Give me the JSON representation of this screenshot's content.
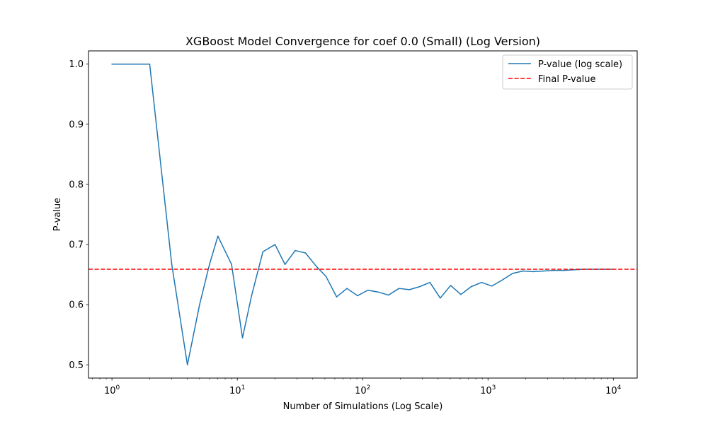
{
  "chart_data": {
    "type": "line",
    "title": "XGBoost Model Convergence for coef 0.0 (Small) (Log Version)",
    "xlabel": "Number of Simulations (Log Scale)",
    "ylabel": "P-value",
    "xscale": "log",
    "xlim": [
      0.65,
      15500
    ],
    "ylim": [
      0.478,
      1.022
    ],
    "xticks": [
      {
        "value": 1,
        "base": "10",
        "exp": "0"
      },
      {
        "value": 10,
        "base": "10",
        "exp": "1"
      },
      {
        "value": 100,
        "base": "10",
        "exp": "2"
      },
      {
        "value": 1000,
        "base": "10",
        "exp": "3"
      },
      {
        "value": 10000,
        "base": "10",
        "exp": "4"
      }
    ],
    "yticks": [
      {
        "value": 0.5,
        "label": "0.5"
      },
      {
        "value": 0.6,
        "label": "0.6"
      },
      {
        "value": 0.7,
        "label": "0.7"
      },
      {
        "value": 0.8,
        "label": "0.8"
      },
      {
        "value": 0.9,
        "label": "0.9"
      },
      {
        "value": 1.0,
        "label": "1.0"
      }
    ],
    "grid": false,
    "legend_position": "top-right",
    "series": [
      {
        "name": "P-value (log scale)",
        "style": "solid",
        "color": "#1f77b4",
        "x": [
          1,
          2,
          3,
          4,
          5,
          6,
          7,
          9,
          11,
          13,
          16,
          20,
          24,
          29,
          35,
          43,
          51,
          62,
          75,
          91,
          110,
          133,
          161,
          195,
          236,
          285,
          344,
          416,
          503,
          608,
          735,
          889,
          1075,
          1300,
          1572,
          1900,
          2297,
          2778,
          3358,
          4060,
          4910,
          5935,
          7177,
          8677,
          10000
        ],
        "y": [
          1.0,
          1.0,
          0.667,
          0.5,
          0.6,
          0.667,
          0.714,
          0.667,
          0.545,
          0.615,
          0.688,
          0.7,
          0.667,
          0.69,
          0.686,
          0.663,
          0.647,
          0.613,
          0.627,
          0.615,
          0.624,
          0.621,
          0.616,
          0.627,
          0.625,
          0.63,
          0.637,
          0.611,
          0.632,
          0.617,
          0.63,
          0.637,
          0.631,
          0.641,
          0.652,
          0.656,
          0.655,
          0.656,
          0.657,
          0.657,
          0.658,
          0.659,
          0.659,
          0.659,
          0.659
        ]
      },
      {
        "name": "Final P-value",
        "style": "dashed",
        "color": "#ff0000",
        "y_constant": 0.659
      }
    ]
  }
}
